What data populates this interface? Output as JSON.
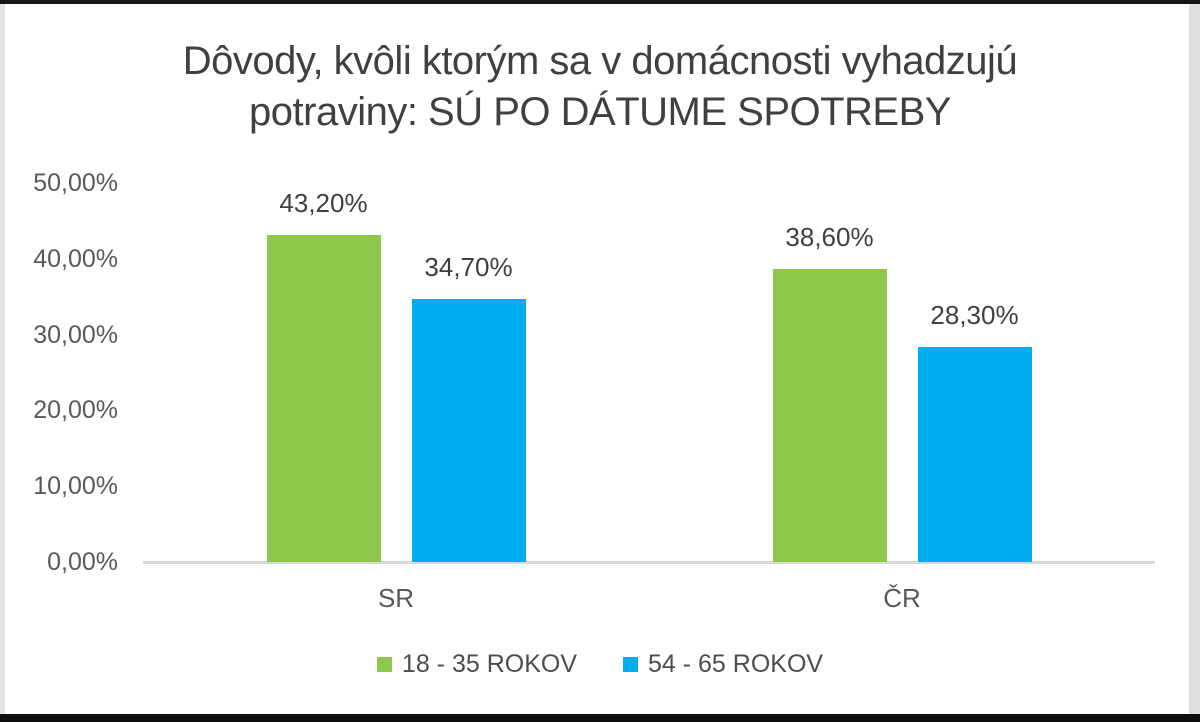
{
  "chart_data": {
    "type": "bar",
    "title": "Dôvody, kvôli ktorým sa v domácnosti vyhadzujú\npotraviny: SÚ PO DÁTUME SPOTREBY",
    "categories": [
      "SR",
      "ČR"
    ],
    "series": [
      {
        "name": "18 - 35 ROKOV",
        "color": "#8DC84B",
        "values": [
          43.2,
          38.6
        ],
        "data_labels": [
          "43,20%",
          "38,60%"
        ]
      },
      {
        "name": "54 - 65 ROKOV",
        "color": "#00AEEF",
        "values": [
          34.7,
          28.3
        ],
        "data_labels": [
          "34,70%",
          "28,30%"
        ]
      }
    ],
    "xlabel": "",
    "ylabel": "",
    "ylim": [
      0,
      50
    ],
    "yticks": [
      {
        "value": 50,
        "label": "50,00%"
      },
      {
        "value": 40,
        "label": "40,00%"
      },
      {
        "value": 30,
        "label": "30,00%"
      },
      {
        "value": 20,
        "label": "20,00%"
      },
      {
        "value": 10,
        "label": "10,00%"
      },
      {
        "value": 0,
        "label": "0,00%"
      }
    ],
    "grid": false,
    "legend_position": "bottom"
  },
  "colors": {
    "series_green": "#8DC84B",
    "series_blue": "#00AEEF",
    "axis_line": "#D9D9D9",
    "title_text": "#404040",
    "data_label_text": "#404040",
    "tick_text": "#595959",
    "legend_text": "#4D4D4D"
  }
}
